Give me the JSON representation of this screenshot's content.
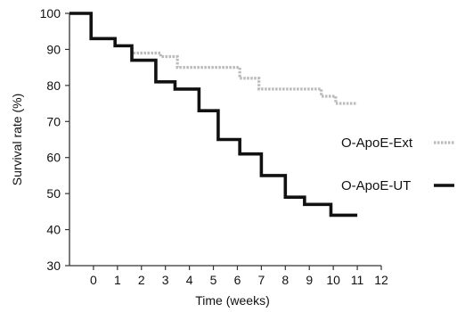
{
  "chart_data": {
    "type": "line",
    "xlabel": "Time (weeks)",
    "ylabel": "Survival rate (%)",
    "xlim": [
      -1,
      12
    ],
    "ylim": [
      30,
      100
    ],
    "xticks": [
      "0",
      "1",
      "2",
      "3",
      "4",
      "5",
      "6",
      "7",
      "8",
      "9",
      "10",
      "11",
      "12"
    ],
    "yticks": [
      "30",
      "40",
      "50",
      "60",
      "70",
      "80",
      "90",
      "100"
    ],
    "grid": false,
    "legend_position": "right",
    "series": [
      {
        "name": "O-ApoE-Ext",
        "style": "dotted",
        "color": "#bbbbbb",
        "x": [
          -1,
          -0.1,
          0.9,
          1.6,
          2.8,
          3.5,
          6.1,
          6.9,
          9.5,
          10.1,
          11
        ],
        "y": [
          100,
          93,
          91,
          89,
          88,
          85,
          82,
          79,
          77,
          75,
          75
        ]
      },
      {
        "name": "O-ApoE-UT",
        "style": "solid",
        "color": "#111111",
        "x": [
          -1,
          -0.1,
          0.9,
          1.6,
          2.6,
          3.4,
          4.4,
          5.2,
          6.1,
          7.0,
          8.0,
          8.8,
          9.9,
          11
        ],
        "y": [
          100,
          93,
          91,
          87,
          81,
          79,
          73,
          65,
          61,
          55,
          49,
          47,
          44,
          44
        ]
      }
    ]
  }
}
